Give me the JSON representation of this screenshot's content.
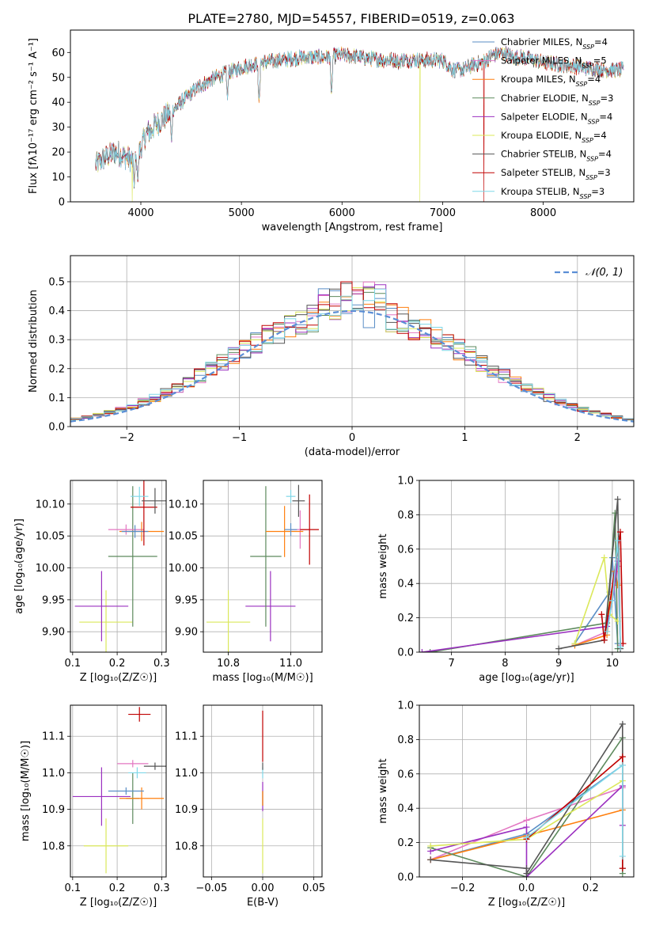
{
  "figure": {
    "title": "PLATE=2780, MJD=54557, FIBERID=0519, z=0.063"
  },
  "model_colors": {
    "Chabrier MILES": "#5a8ec6",
    "Salpeter MILES": "#e377c2",
    "Kroupa MILES": "#ff7f0e",
    "Chabrier ELODIE": "#5d8a5d",
    "Salpeter ELODIE": "#9b30c0",
    "Kroupa ELODIE": "#dbe85a",
    "Chabrier STELIB": "#555555",
    "Salpeter STELIB": "#c00000",
    "Kroupa STELIB": "#7fd8e8"
  },
  "chart_data": [
    {
      "id": "spectrum",
      "type": "line",
      "xlabel": "wavelength [Angstrom, rest frame]",
      "ylabel": "Flux [fλ10⁻¹⁷ erg cm⁻² s⁻¹ A⁻¹]",
      "xlim": [
        3300,
        8900
      ],
      "ylim": [
        0,
        69
      ],
      "xticks": [
        4000,
        5000,
        6000,
        7000,
        8000
      ],
      "yticks": [
        0,
        10,
        20,
        30,
        40,
        50,
        60
      ],
      "grid": false,
      "legend_position": "top-right",
      "series": [
        {
          "name": "Chabrier MILES, N_SSP=4",
          "legend_main": "Chabrier MILES, N",
          "legend_sub": "SSP",
          "legend_tail": "=4",
          "color": "#5a8ec6"
        },
        {
          "name": "Salpeter MILES, N_SSP=5",
          "legend_main": "Salpeter MILES, N",
          "legend_sub": "SSP",
          "legend_tail": "=5",
          "color": "#e377c2"
        },
        {
          "name": "Kroupa MILES, N_SSP=4",
          "legend_main": "Kroupa MILES, N",
          "legend_sub": "SSP",
          "legend_tail": "=4",
          "color": "#ff7f0e"
        },
        {
          "name": "Chabrier ELODIE, N_SSP=3",
          "legend_main": "Chabrier ELODIE, N",
          "legend_sub": "SSP",
          "legend_tail": "=3",
          "color": "#5d8a5d"
        },
        {
          "name": "Salpeter ELODIE, N_SSP=4",
          "legend_main": "Salpeter ELODIE, N",
          "legend_sub": "SSP",
          "legend_tail": "=4",
          "color": "#9b30c0"
        },
        {
          "name": "Kroupa ELODIE, N_SSP=4",
          "legend_main": "Kroupa ELODIE, N",
          "legend_sub": "SSP",
          "legend_tail": "=4",
          "color": "#dbe85a"
        },
        {
          "name": "Chabrier STELIB, N_SSP=4",
          "legend_main": "Chabrier STELIB, N",
          "legend_sub": "SSP",
          "legend_tail": "=4",
          "color": "#555555"
        },
        {
          "name": "Salpeter STELIB, N_SSP=3",
          "legend_main": "Salpeter STELIB, N",
          "legend_sub": "SSP",
          "legend_tail": "=3",
          "color": "#c00000"
        },
        {
          "name": "Kroupa STELIB, N_SSP=3",
          "legend_main": "Kroupa STELIB, N",
          "legend_sub": "SSP",
          "legend_tail": "=3",
          "color": "#7fd8e8"
        }
      ],
      "continuum": {
        "x": [
          3550,
          3650,
          3750,
          3850,
          3950,
          4050,
          4150,
          4300,
          4450,
          4600,
          4800,
          5000,
          5200,
          5400,
          5600,
          5800,
          6000,
          6200,
          6400,
          6600,
          6800,
          7000,
          7100,
          7200,
          7300,
          7400,
          7500,
          7600,
          7700,
          7800,
          8000,
          8200,
          8400,
          8600,
          8800
        ],
        "y": [
          15,
          18,
          20,
          18,
          16,
          27,
          31,
          36,
          42,
          47,
          51,
          54,
          56,
          57,
          58,
          58,
          59,
          58,
          57,
          57,
          57,
          57,
          53,
          53,
          55,
          56,
          59,
          60,
          58,
          58,
          56,
          55,
          54,
          53,
          53
        ]
      },
      "dips": [
        {
          "x": 3934,
          "y": 6
        },
        {
          "x": 3969,
          "y": 8
        },
        {
          "x": 4102,
          "y": 26
        },
        {
          "x": 4305,
          "y": 24
        },
        {
          "x": 4861,
          "y": 41
        },
        {
          "x": 5175,
          "y": 40
        },
        {
          "x": 5895,
          "y": 43
        },
        {
          "x": 6563,
          "y": 53
        }
      ],
      "spikes": [
        {
          "x": 3915,
          "y_low": 0,
          "color": "#dbe85a"
        },
        {
          "x": 6775,
          "y_low": 0,
          "color": "#dbe85a"
        },
        {
          "x": 7410,
          "y_low": 0,
          "color": "#c00000"
        }
      ]
    },
    {
      "id": "residuals",
      "type": "step",
      "xlabel": "(data-model)/error",
      "ylabel": "Normed distribution",
      "xlim": [
        -2.5,
        2.5
      ],
      "ylim": [
        0,
        0.59
      ],
      "xticks": [
        -2,
        -1,
        0,
        1,
        2
      ],
      "yticks": [
        0.0,
        0.1,
        0.2,
        0.3,
        0.4,
        0.5
      ],
      "grid": true,
      "legend_position": "top-right",
      "reference_curve": {
        "name": "𝒩(0, 1)",
        "mean": 0,
        "sigma": 1,
        "color": "#5b8ed6"
      },
      "bin_width": 0.1
    },
    {
      "id": "age_vs_Z",
      "type": "scatter",
      "xlabel": "Z [log₁₀(Z/Z☉)]",
      "ylabel": "age  [log₁₀(age/yr)]",
      "xlim": [
        0.095,
        0.31
      ],
      "ylim": [
        9.868,
        10.137
      ],
      "xticks": [
        0.1,
        0.2,
        0.3
      ],
      "yticks": [
        9.9,
        9.95,
        10.0,
        10.05,
        10.1
      ],
      "grid": true,
      "points": [
        {
          "model": "Kroupa ELODIE",
          "x": 0.175,
          "y": 9.915,
          "xerr": 0.06,
          "yerr": 0.05,
          "color": "#dbe85a"
        },
        {
          "model": "Salpeter ELODIE",
          "x": 0.165,
          "y": 9.94,
          "xerr": 0.06,
          "yerr": 0.055,
          "color": "#9b30c0"
        },
        {
          "model": "Chabrier ELODIE",
          "x": 0.235,
          "y": 10.018,
          "xerr": 0.055,
          "yerr": 0.11,
          "color": "#5d8a5d"
        },
        {
          "model": "Salpeter MILES",
          "x": 0.22,
          "y": 10.06,
          "xerr": 0.04,
          "yerr": 0.008,
          "color": "#e377c2"
        },
        {
          "model": "Kroupa MILES",
          "x": 0.255,
          "y": 10.057,
          "xerr": 0.05,
          "yerr": 0.015,
          "color": "#ff7f0e"
        },
        {
          "model": "Chabrier MILES",
          "x": 0.24,
          "y": 10.057,
          "xerr": 0.03,
          "yerr": 0.01,
          "color": "#5a8ec6"
        },
        {
          "model": "Salpeter STELIB",
          "x": 0.26,
          "y": 10.095,
          "xerr": 0.03,
          "yerr": 0.06,
          "color": "#c00000"
        },
        {
          "model": "Kroupa STELIB",
          "x": 0.25,
          "y": 10.112,
          "xerr": 0.02,
          "yerr": 0.015,
          "color": "#7fd8e8"
        },
        {
          "model": "Chabrier STELIB",
          "x": 0.285,
          "y": 10.105,
          "xerr": 0.03,
          "yerr": 0.02,
          "color": "#555555"
        }
      ]
    },
    {
      "id": "age_vs_mass",
      "type": "scatter",
      "xlabel": "mass [log₁₀(M/M☉)]",
      "ylabel": "",
      "xlim": [
        10.72,
        11.1
      ],
      "ylim": [
        9.868,
        10.137
      ],
      "xticks": [
        10.8,
        11.0
      ],
      "yticks": [
        9.9,
        9.95,
        10.0,
        10.05,
        10.1
      ],
      "grid": true,
      "points": [
        {
          "model": "Kroupa ELODIE",
          "x": 10.8,
          "y": 9.915,
          "xerr": 0.07,
          "yerr": 0.05,
          "color": "#dbe85a"
        },
        {
          "model": "Salpeter ELODIE",
          "x": 10.935,
          "y": 9.94,
          "xerr": 0.08,
          "yerr": 0.055,
          "color": "#9b30c0"
        },
        {
          "model": "Chabrier ELODIE",
          "x": 10.92,
          "y": 10.018,
          "xerr": 0.05,
          "yerr": 0.11,
          "color": "#5d8a5d"
        },
        {
          "model": "Salpeter MILES",
          "x": 11.03,
          "y": 10.06,
          "xerr": 0.03,
          "yerr": 0.03,
          "color": "#e377c2"
        },
        {
          "model": "Kroupa MILES",
          "x": 10.98,
          "y": 10.057,
          "xerr": 0.06,
          "yerr": 0.04,
          "color": "#ff7f0e"
        },
        {
          "model": "Chabrier MILES",
          "x": 11.0,
          "y": 10.06,
          "xerr": 0.02,
          "yerr": 0.01,
          "color": "#5a8ec6"
        },
        {
          "model": "Salpeter STELIB",
          "x": 11.06,
          "y": 10.06,
          "xerr": 0.03,
          "yerr": 0.055,
          "color": "#c00000"
        },
        {
          "model": "Kroupa STELIB",
          "x": 11.0,
          "y": 10.112,
          "xerr": 0.015,
          "yerr": 0.01,
          "color": "#7fd8e8"
        },
        {
          "model": "Chabrier STELIB",
          "x": 11.025,
          "y": 10.105,
          "xerr": 0.02,
          "yerr": 0.025,
          "color": "#555555"
        }
      ]
    },
    {
      "id": "weight_vs_age",
      "type": "line",
      "xlabel": "age  [log₁₀(age/yr)]",
      "ylabel": "mass weight",
      "xlim": [
        6.4,
        10.4
      ],
      "ylim": [
        0,
        1.0
      ],
      "xticks": [
        7,
        8,
        9,
        10
      ],
      "yticks": [
        0.0,
        0.2,
        0.4,
        0.6,
        0.8,
        1.0
      ],
      "grid": true,
      "series": [
        {
          "model": "Chabrier MILES",
          "color": "#5a8ec6",
          "x": [
            9.3,
            9.95,
            10.0,
            10.1
          ],
          "y": [
            0.05,
            0.35,
            0.55,
            0.05
          ]
        },
        {
          "model": "Salpeter MILES",
          "color": "#e377c2",
          "x": [
            9.3,
            9.9,
            10.0,
            10.1,
            10.15
          ],
          "y": [
            0.04,
            0.12,
            0.3,
            0.5,
            0.04
          ]
        },
        {
          "model": "Kroupa MILES",
          "color": "#ff7f0e",
          "x": [
            9.3,
            9.9,
            10.05,
            10.1
          ],
          "y": [
            0.04,
            0.1,
            0.47,
            0.39
          ]
        },
        {
          "model": "Chabrier ELODIE",
          "color": "#5d8a5d",
          "x": [
            6.6,
            9.9,
            10.05,
            10.1
          ],
          "y": [
            0.0,
            0.17,
            0.81,
            0.02
          ]
        },
        {
          "model": "Salpeter ELODIE",
          "color": "#9b30c0",
          "x": [
            6.45,
            9.9,
            10.0,
            10.1
          ],
          "y": [
            0.0,
            0.15,
            0.3,
            0.53
          ]
        },
        {
          "model": "Kroupa ELODIE",
          "color": "#dbe85a",
          "x": [
            9.3,
            9.85,
            9.95,
            10.1
          ],
          "y": [
            0.05,
            0.55,
            0.22,
            0.18
          ]
        },
        {
          "model": "Chabrier STELIB",
          "color": "#555555",
          "x": [
            9.0,
            9.85,
            10.1,
            10.15
          ],
          "y": [
            0.02,
            0.07,
            0.89,
            0.02
          ]
        },
        {
          "model": "Salpeter STELIB",
          "color": "#c00000",
          "x": [
            9.8,
            9.85,
            10.15,
            10.2
          ],
          "y": [
            0.22,
            0.07,
            0.7,
            0.05
          ]
        },
        {
          "model": "Kroupa STELIB",
          "color": "#7fd8e8",
          "x": [
            9.9,
            10.0,
            10.1,
            10.15
          ],
          "y": [
            0.12,
            0.3,
            0.65,
            0.03
          ]
        }
      ]
    },
    {
      "id": "mass_vs_Z",
      "type": "scatter",
      "xlabel": "Z [log₁₀(Z/Z☉)]",
      "ylabel": "mass [log₁₀(M/M☉)]",
      "xlim": [
        0.095,
        0.31
      ],
      "ylim": [
        10.715,
        11.185
      ],
      "xticks": [
        0.1,
        0.2,
        0.3
      ],
      "yticks": [
        10.8,
        10.9,
        11.0,
        11.1
      ],
      "grid": true,
      "points": [
        {
          "model": "Kroupa ELODIE",
          "x": 0.175,
          "y": 10.8,
          "xerr": 0.05,
          "yerr": 0.075,
          "color": "#dbe85a"
        },
        {
          "model": "Salpeter ELODIE",
          "x": 0.165,
          "y": 10.935,
          "xerr": 0.065,
          "yerr": 0.08,
          "color": "#9b30c0"
        },
        {
          "model": "Chabrier ELODIE",
          "x": 0.235,
          "y": 10.93,
          "xerr": 0.015,
          "yerr": 0.07,
          "color": "#5d8a5d"
        },
        {
          "model": "Kroupa MILES",
          "x": 0.255,
          "y": 10.93,
          "xerr": 0.05,
          "yerr": 0.03,
          "color": "#ff7f0e"
        },
        {
          "model": "Chabrier MILES",
          "x": 0.22,
          "y": 10.95,
          "xerr": 0.04,
          "yerr": 0.01,
          "color": "#5a8ec6"
        },
        {
          "model": "Salpeter MILES",
          "x": 0.235,
          "y": 11.025,
          "xerr": 0.035,
          "yerr": 0.01,
          "color": "#e377c2"
        },
        {
          "model": "Kroupa STELIB",
          "x": 0.245,
          "y": 11.0,
          "xerr": 0.02,
          "yerr": 0.015,
          "color": "#7fd8e8"
        },
        {
          "model": "Salpeter STELIB",
          "x": 0.25,
          "y": 11.16,
          "xerr": 0.025,
          "yerr": 0.02,
          "color": "#c00000"
        },
        {
          "model": "Chabrier STELIB",
          "x": 0.285,
          "y": 11.018,
          "xerr": 0.025,
          "yerr": 0.01,
          "color": "#555555"
        }
      ]
    },
    {
      "id": "mass_vs_EBV",
      "type": "scatter",
      "xlabel": "E(B-V)",
      "ylabel": "",
      "xlim": [
        -0.058,
        0.058
      ],
      "ylim": [
        10.715,
        11.185
      ],
      "xticks": [
        -0.05,
        0.0,
        0.05
      ],
      "xticklabels": [
        "−0.05",
        "0.00",
        "0.05"
      ],
      "yticks": [
        10.8,
        10.9,
        11.0,
        11.1
      ],
      "grid": true,
      "points": [
        {
          "model": "Kroupa ELODIE",
          "x": 0.0,
          "y": 10.8,
          "xerr": 0,
          "yerr": 0.075,
          "color": "#dbe85a"
        },
        {
          "model": "Salpeter ELODIE",
          "x": 0.0,
          "y": 10.935,
          "xerr": 0,
          "yerr": 0.04,
          "color": "#9b30c0"
        },
        {
          "model": "Chabrier ELODIE",
          "x": 0.0,
          "y": 10.93,
          "xerr": 0,
          "yerr": 0.02,
          "color": "#5d8a5d"
        },
        {
          "model": "Kroupa MILES",
          "x": 0.0,
          "y": 10.93,
          "xerr": 0,
          "yerr": 0.02,
          "color": "#ff7f0e"
        },
        {
          "model": "Kroupa STELIB",
          "x": 0.0,
          "y": 11.0,
          "xerr": 0,
          "yerr": 0.015,
          "color": "#7fd8e8"
        },
        {
          "model": "Salpeter STELIB",
          "x": 0.0,
          "y": 11.1,
          "xerr": 0,
          "yerr": 0.07,
          "color": "#c00000"
        },
        {
          "model": "Chabrier STELIB",
          "x": 0.0,
          "y": 11.018,
          "xerr": 0,
          "yerr": 0.01,
          "color": "#555555"
        }
      ]
    },
    {
      "id": "weight_vs_Z",
      "type": "line",
      "xlabel": "Z [log₁₀(Z/Z☉)]",
      "ylabel": "mass weight",
      "xlim": [
        -0.335,
        0.335
      ],
      "ylim": [
        0,
        1.0
      ],
      "xticks": [
        -0.2,
        0.0,
        0.2
      ],
      "xticklabels": [
        "−0.2",
        "0.0",
        "0.2"
      ],
      "yticks": [
        0.0,
        0.2,
        0.4,
        0.6,
        0.8,
        1.0
      ],
      "grid": true,
      "series": [
        {
          "model": "Chabrier MILES",
          "color": "#5a8ec6",
          "x": [
            -0.3,
            0.0,
            0.3
          ],
          "y": [
            0.1,
            0.25,
            0.65
          ]
        },
        {
          "model": "Salpeter MILES",
          "color": "#e377c2",
          "x": [
            -0.3,
            0.0,
            0.3
          ],
          "y": [
            0.1,
            0.33,
            0.52
          ]
        },
        {
          "model": "Kroupa MILES",
          "color": "#ff7f0e",
          "x": [
            -0.3,
            0.0,
            0.3
          ],
          "y": [
            0.1,
            0.24,
            0.39
          ]
        },
        {
          "model": "Chabrier ELODIE",
          "color": "#5d8a5d",
          "x": [
            -0.3,
            0.0,
            0.3,
            0.3
          ],
          "y": [
            0.17,
            0.0,
            0.81,
            0.02
          ]
        },
        {
          "model": "Salpeter ELODIE",
          "color": "#9b30c0",
          "x": [
            -0.3,
            0.0,
            0.0,
            0.3,
            0.3
          ],
          "y": [
            0.15,
            0.29,
            0.0,
            0.53,
            0.3
          ]
        },
        {
          "model": "Kroupa ELODIE",
          "color": "#dbe85a",
          "x": [
            -0.3,
            0.0,
            0.3
          ],
          "y": [
            0.18,
            0.22,
            0.56
          ]
        },
        {
          "model": "Chabrier STELIB",
          "color": "#555555",
          "x": [
            -0.3,
            0.0,
            0.0,
            0.3,
            0.3
          ],
          "y": [
            0.1,
            0.05,
            0.02,
            0.89,
            0.05
          ]
        },
        {
          "model": "Salpeter STELIB",
          "color": "#c00000",
          "x": [
            0.0,
            0.3,
            0.3
          ],
          "y": [
            0.22,
            0.7,
            0.05
          ]
        },
        {
          "model": "Kroupa STELIB",
          "color": "#7fd8e8",
          "x": [
            0.0,
            0.3,
            0.3
          ],
          "y": [
            0.23,
            0.65,
            0.12
          ]
        }
      ]
    }
  ]
}
